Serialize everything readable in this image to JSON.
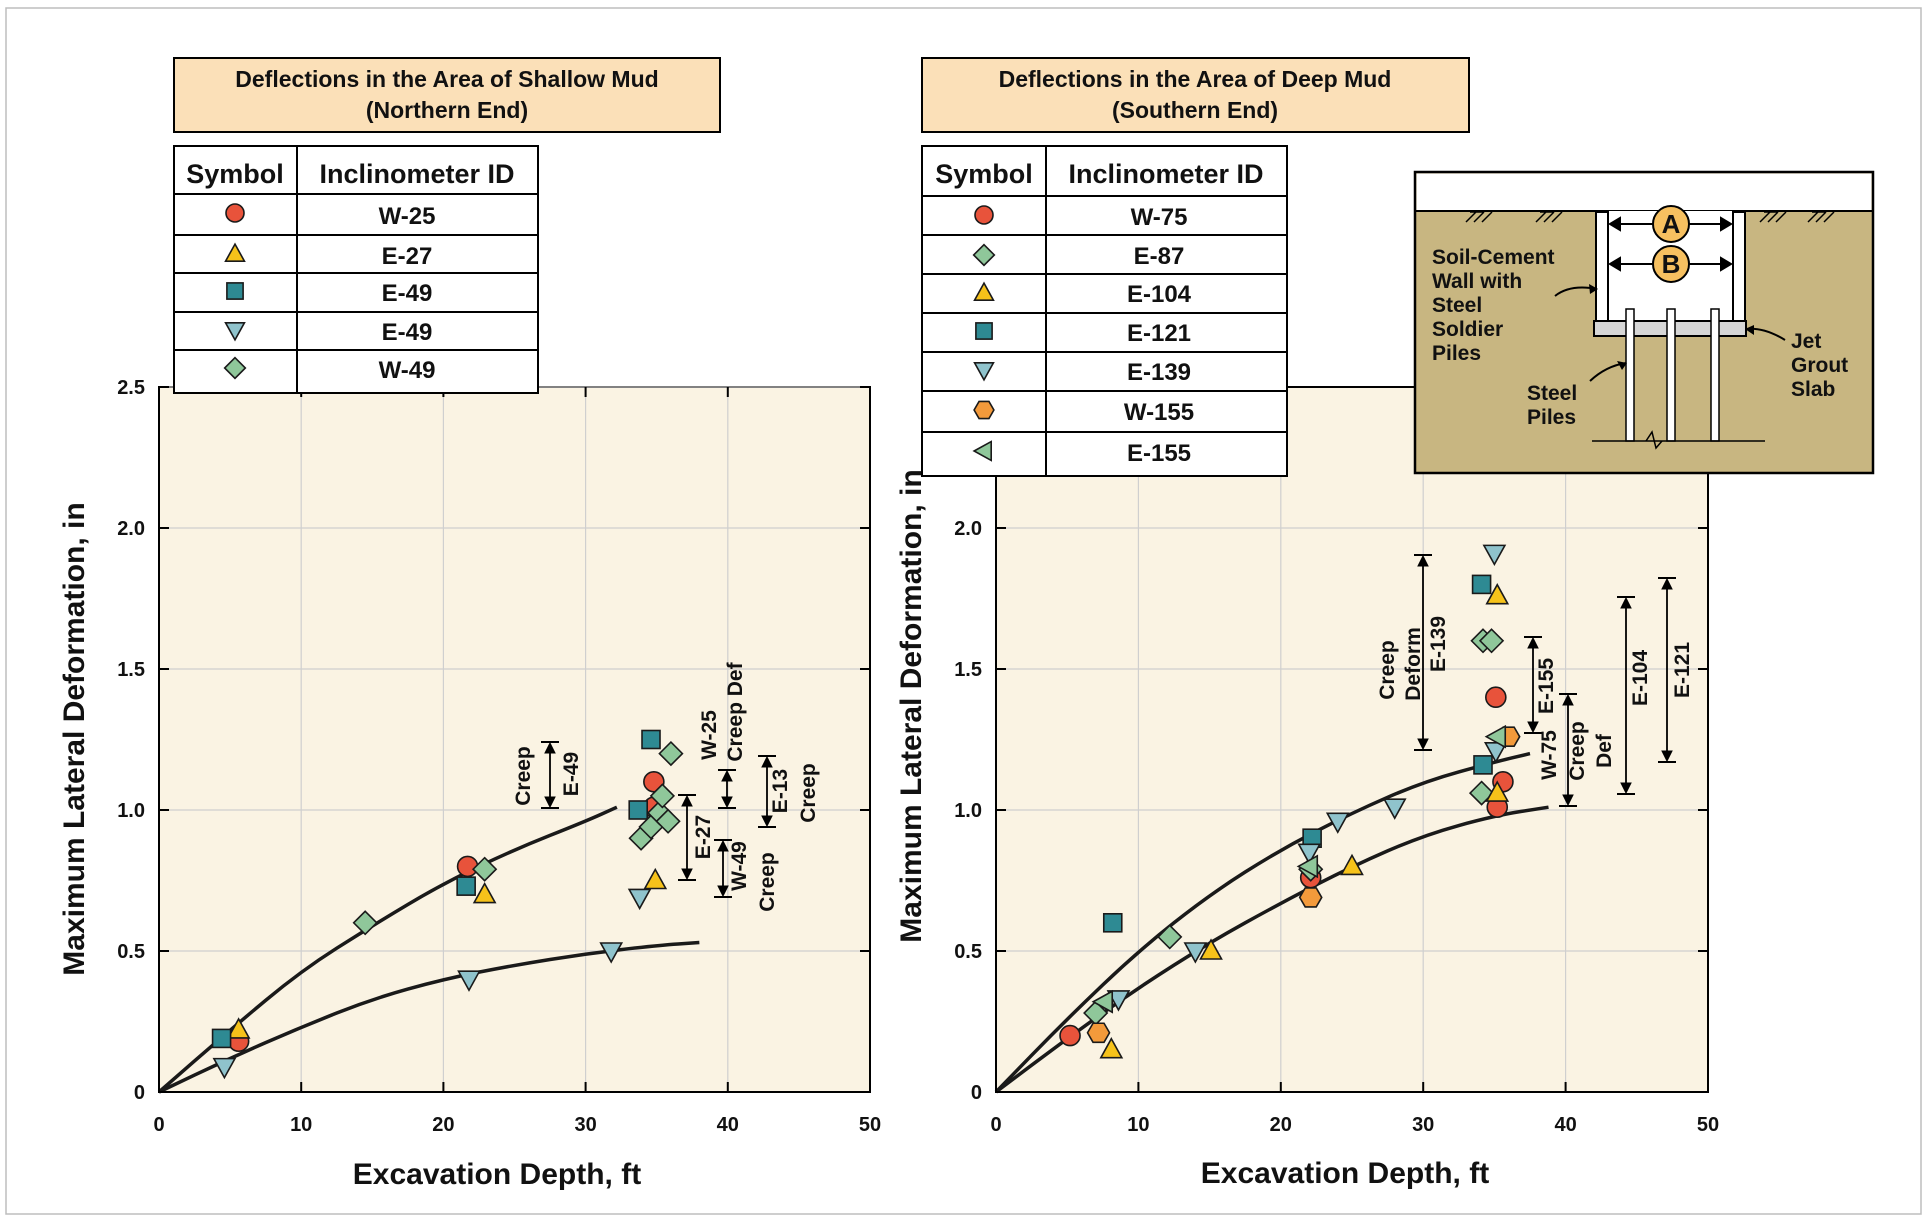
{
  "chart_data": [
    {
      "type": "scatter",
      "title": "Deflections in the Area of Shallow Mud",
      "subtitle": "(Northern End)",
      "xlabel": "Excavation Depth, ft",
      "ylabel": "Maximum Lateral Deformation, in",
      "xlim": [
        0,
        50
      ],
      "ylim": [
        0,
        2.5
      ],
      "xticks": [
        "0",
        "10",
        "20",
        "30",
        "40",
        "50"
      ],
      "yticks": [
        "0",
        "0.5",
        "1.0",
        "1.5",
        "2.0",
        "2.5"
      ],
      "grid": true,
      "legend_headers": [
        "Symbol",
        "Inclinometer ID"
      ],
      "series": [
        {
          "name": "W-25",
          "marker": "circle",
          "color": "#e8533b",
          "points": [
            [
              5.6,
              0.18
            ],
            [
              21.7,
              0.8
            ],
            [
              34.8,
              1.1
            ],
            [
              34.8,
              1.01
            ]
          ]
        },
        {
          "name": "E-27",
          "marker": "triangle-up",
          "color": "#f6c21a",
          "points": [
            [
              5.6,
              0.22
            ],
            [
              22.9,
              0.7
            ],
            [
              34.9,
              0.75
            ]
          ]
        },
        {
          "name": "E-49",
          "marker": "square",
          "color": "#2e8a93",
          "points": [
            [
              4.4,
              0.19
            ],
            [
              21.6,
              0.73
            ],
            [
              33.7,
              1.0
            ],
            [
              34.6,
              1.25
            ]
          ]
        },
        {
          "name": "E-49",
          "marker": "triangle-down",
          "color": "#8fc3cc",
          "points": [
            [
              4.6,
              0.09
            ],
            [
              21.8,
              0.4
            ],
            [
              31.8,
              0.5
            ],
            [
              33.8,
              0.69
            ]
          ]
        },
        {
          "name": "W-49",
          "marker": "diamond",
          "color": "#8fc79a",
          "points": [
            [
              14.5,
              0.6
            ],
            [
              22.9,
              0.79
            ],
            [
              33.9,
              0.9
            ],
            [
              34.6,
              0.94
            ],
            [
              35.2,
              0.99
            ],
            [
              35.4,
              1.05
            ],
            [
              35.8,
              0.96
            ],
            [
              36.0,
              1.2
            ]
          ]
        }
      ],
      "curves": [
        [
          [
            0,
            0
          ],
          [
            5,
            0.22
          ],
          [
            10,
            0.43
          ],
          [
            15,
            0.59
          ],
          [
            20,
            0.74
          ],
          [
            25,
            0.86
          ],
          [
            30,
            0.96
          ],
          [
            32.2,
            1.01
          ]
        ],
        [
          [
            0,
            0
          ],
          [
            5,
            0.12
          ],
          [
            10,
            0.23
          ],
          [
            15,
            0.33
          ],
          [
            20,
            0.4
          ],
          [
            25,
            0.45
          ],
          [
            30,
            0.49
          ],
          [
            35,
            0.52
          ],
          [
            38,
            0.53
          ]
        ]
      ],
      "annotations": [
        "Creep",
        "E-49",
        "W-25",
        "Creep Def",
        "E-13",
        "Creep",
        "E-27",
        "W-49",
        "Creep"
      ]
    },
    {
      "type": "scatter",
      "title": "Deflections in the Area of Deep Mud",
      "subtitle": "(Southern End)",
      "xlabel": "Excavation Depth, ft",
      "ylabel": "Maximum Lateral Deformation, in",
      "xlim": [
        0,
        50
      ],
      "ylim": [
        0,
        2.5
      ],
      "xticks": [
        "0",
        "10",
        "20",
        "30",
        "40",
        "50"
      ],
      "yticks": [
        "0",
        "0.5",
        "1.0",
        "1.5",
        "2.0"
      ],
      "grid": true,
      "legend_headers": [
        "Symbol",
        "Inclinometer ID"
      ],
      "series": [
        {
          "name": "W-75",
          "marker": "circle",
          "color": "#e8533b",
          "points": [
            [
              5.2,
              0.2
            ],
            [
              22.1,
              0.76
            ],
            [
              35.1,
              1.4
            ],
            [
              35.2,
              1.01
            ],
            [
              35.6,
              1.1
            ]
          ]
        },
        {
          "name": "E-87",
          "marker": "diamond",
          "color": "#8fc79a",
          "points": [
            [
              7.0,
              0.28
            ],
            [
              12.2,
              0.55
            ],
            [
              22.1,
              0.79
            ],
            [
              34.1,
              1.06
            ],
            [
              34.2,
              1.6
            ],
            [
              34.8,
              1.6
            ]
          ]
        },
        {
          "name": "E-104",
          "marker": "triangle-up",
          "color": "#f6c21a",
          "points": [
            [
              8.1,
              0.15
            ],
            [
              15.1,
              0.5
            ],
            [
              25.0,
              0.8
            ],
            [
              35.2,
              1.06
            ],
            [
              35.2,
              1.76
            ]
          ]
        },
        {
          "name": "E-121",
          "marker": "square",
          "color": "#2e8a93",
          "points": [
            [
              8.2,
              0.6
            ],
            [
              22.2,
              0.9
            ],
            [
              34.2,
              1.16
            ],
            [
              34.1,
              1.8
            ]
          ]
        },
        {
          "name": "E-139",
          "marker": "triangle-down",
          "color": "#8fc3cc",
          "points": [
            [
              8.6,
              0.33
            ],
            [
              14.0,
              0.5
            ],
            [
              22.0,
              0.85
            ],
            [
              24.0,
              0.96
            ],
            [
              28.0,
              1.01
            ],
            [
              35.1,
              1.21
            ],
            [
              35.0,
              1.91
            ]
          ]
        },
        {
          "name": "W-155",
          "marker": "hexagon",
          "color": "#f39a3b",
          "points": [
            [
              7.2,
              0.21
            ],
            [
              22.1,
              0.69
            ],
            [
              36.0,
              1.26
            ]
          ]
        },
        {
          "name": "E-155",
          "marker": "triangle-left",
          "color": "#8fc79a",
          "points": [
            [
              7.6,
              0.32
            ],
            [
              22.0,
              0.8
            ],
            [
              35.2,
              1.26
            ]
          ]
        }
      ],
      "curves": [
        [
          [
            0,
            0
          ],
          [
            5,
            0.26
          ],
          [
            10,
            0.5
          ],
          [
            15,
            0.7
          ],
          [
            20,
            0.86
          ],
          [
            25,
            0.99
          ],
          [
            30,
            1.1
          ],
          [
            35,
            1.17
          ],
          [
            37.5,
            1.2
          ]
        ],
        [
          [
            0,
            0
          ],
          [
            5,
            0.19
          ],
          [
            10,
            0.37
          ],
          [
            15,
            0.53
          ],
          [
            20,
            0.67
          ],
          [
            25,
            0.8
          ],
          [
            30,
            0.91
          ],
          [
            35,
            0.98
          ],
          [
            38.8,
            1.01
          ]
        ]
      ],
      "annotations": [
        "Creep",
        "Deform",
        "E-139",
        "E-155",
        "W-75",
        "Creep",
        "Def",
        "E-104",
        "E-121"
      ]
    }
  ],
  "inset": {
    "labels": [
      "A",
      "B"
    ],
    "wall_label": [
      "Soil-Cement",
      "Wall with",
      "Steel",
      "Soldier",
      "Piles"
    ],
    "piles_label": [
      "Steel",
      "Piles"
    ],
    "slab_label": [
      "Jet",
      "Grout",
      "Slab"
    ]
  },
  "colors": {
    "plot_background": "#faf3e3",
    "title_background": "#fbe0b8",
    "inset_soil": "#c8b681",
    "grid": "#cfcfcf",
    "curve": "#1a1a1a"
  }
}
